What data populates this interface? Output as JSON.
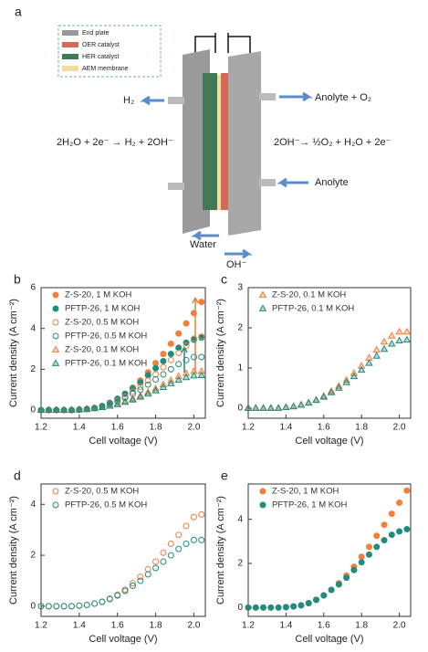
{
  "diagram": {
    "panel": "a",
    "legend": [
      "End plate",
      "OER catalyst",
      "HER catalyst",
      "AEM membrane"
    ],
    "left_outlet": "H₂",
    "right_outlet": "Anolyte + O₂",
    "left_reaction": "2H₂O + 2e⁻ → H₂ + 2OH⁻",
    "right_reaction": "2OH⁻→ ½O₂ + H₂O + 2e⁻",
    "right_inlet": "Anolyte",
    "water": "Water",
    "hydroxide": "OH⁻"
  },
  "chart_data": [
    {
      "type": "scatter",
      "panel": "b",
      "xlabel": "Cell voltage (V)",
      "ylabel": "Current density (A cm⁻²)",
      "xlim": [
        1.2,
        2.06
      ],
      "xticks": [
        1.2,
        1.4,
        1.6,
        1.8,
        {
          "value": 2,
          "label": "2.0"
        }
      ],
      "ylim": [
        -0.4,
        6
      ],
      "yticks": [
        0,
        2,
        4,
        6
      ],
      "x": [
        1.2,
        1.24,
        1.28,
        1.32,
        1.36,
        1.4,
        1.44,
        1.48,
        1.52,
        1.56,
        1.6,
        1.64,
        1.68,
        1.72,
        1.76,
        1.8,
        1.84,
        1.88,
        1.92,
        1.96,
        2.0,
        2.04
      ],
      "series": [
        {
          "name": "Z-S-20, 1 M KOH",
          "color": "#f07f3c",
          "marker": "circle",
          "filled": true,
          "values": [
            0,
            0,
            0,
            0,
            0,
            0.02,
            0.05,
            0.1,
            0.2,
            0.35,
            0.55,
            0.8,
            1.1,
            1.45,
            1.85,
            2.3,
            2.75,
            3.25,
            3.75,
            4.25,
            4.75,
            5.3
          ]
        },
        {
          "name": "PFTP-26, 1 M KOH",
          "color": "#1e8c7e",
          "marker": "circle",
          "filled": true,
          "values": [
            0,
            0,
            0,
            0,
            0,
            0.02,
            0.05,
            0.1,
            0.2,
            0.35,
            0.55,
            0.8,
            1.05,
            1.35,
            1.7,
            2.05,
            2.4,
            2.75,
            3.05,
            3.3,
            3.45,
            3.55
          ]
        },
        {
          "name": "Z-S-20, 0.5 M KOH",
          "color": "#f07f3c",
          "marker": "circle",
          "filled": false,
          "values": [
            0,
            0,
            0,
            0,
            0,
            0.02,
            0.05,
            0.1,
            0.18,
            0.3,
            0.45,
            0.65,
            0.9,
            1.15,
            1.45,
            1.75,
            2.1,
            2.45,
            2.8,
            3.15,
            3.5,
            3.6
          ]
        },
        {
          "name": "PFTP-26, 0.5 M KOH",
          "color": "#1e8c7e",
          "marker": "circle",
          "filled": false,
          "values": [
            0,
            0,
            0,
            0,
            0,
            0.02,
            0.05,
            0.1,
            0.17,
            0.28,
            0.42,
            0.6,
            0.8,
            1.0,
            1.25,
            1.5,
            1.75,
            2.0,
            2.25,
            2.45,
            2.6,
            2.6
          ]
        },
        {
          "name": "Z-S-20, 0.1 M KOH",
          "color": "#f07f3c",
          "marker": "triangle",
          "filled": false,
          "values": [
            0,
            0,
            0,
            0,
            0,
            0.02,
            0.04,
            0.08,
            0.13,
            0.2,
            0.3,
            0.42,
            0.55,
            0.7,
            0.87,
            1.05,
            1.25,
            1.45,
            1.65,
            1.8,
            1.9,
            1.9
          ]
        },
        {
          "name": "PFTP-26, 0.1 M KOH",
          "color": "#1e8c7e",
          "marker": "triangle",
          "filled": false,
          "values": [
            0,
            0,
            0,
            0,
            0,
            0.02,
            0.04,
            0.08,
            0.13,
            0.2,
            0.28,
            0.39,
            0.5,
            0.64,
            0.79,
            0.95,
            1.12,
            1.3,
            1.47,
            1.6,
            1.68,
            1.7
          ]
        }
      ]
    },
    {
      "type": "scatter",
      "panel": "c",
      "xlabel": "Cell voltage (V)",
      "ylabel": "Current density (A cm⁻²)",
      "xlim": [
        1.2,
        2.06
      ],
      "xticks": [
        1.2,
        1.4,
        1.6,
        1.8,
        {
          "value": 2,
          "label": "2.0"
        }
      ],
      "ylim": [
        -0.25,
        3
      ],
      "yticks": [
        0,
        1,
        2,
        3
      ],
      "x": [
        1.2,
        1.24,
        1.28,
        1.32,
        1.36,
        1.4,
        1.44,
        1.48,
        1.52,
        1.56,
        1.6,
        1.64,
        1.68,
        1.72,
        1.76,
        1.8,
        1.84,
        1.88,
        1.92,
        1.96,
        2.0,
        2.04
      ],
      "series": [
        {
          "name": "Z-S-20, 0.1 M KOH",
          "color": "#f07f3c",
          "marker": "triangle",
          "filled": false,
          "values": [
            0,
            0,
            0,
            0,
            0,
            0.02,
            0.04,
            0.08,
            0.13,
            0.2,
            0.3,
            0.42,
            0.55,
            0.7,
            0.87,
            1.05,
            1.25,
            1.45,
            1.65,
            1.8,
            1.9,
            1.9
          ]
        },
        {
          "name": "PFTP-26, 0.1 M KOH",
          "color": "#1e8c7e",
          "marker": "triangle",
          "filled": false,
          "values": [
            0,
            0,
            0,
            0,
            0,
            0.02,
            0.04,
            0.08,
            0.13,
            0.2,
            0.28,
            0.39,
            0.5,
            0.64,
            0.79,
            0.95,
            1.12,
            1.3,
            1.47,
            1.6,
            1.68,
            1.7
          ]
        }
      ]
    },
    {
      "type": "scatter",
      "panel": "d",
      "xlabel": "Cell voltage (V)",
      "ylabel": "Current density (A cm⁻²)",
      "xlim": [
        1.2,
        2.06
      ],
      "xticks": [
        1.2,
        1.4,
        1.6,
        1.8,
        {
          "value": 2,
          "label": "2.0"
        }
      ],
      "ylim": [
        -0.4,
        4.8
      ],
      "yticks": [
        0,
        2,
        4
      ],
      "x": [
        1.2,
        1.24,
        1.28,
        1.32,
        1.36,
        1.4,
        1.44,
        1.48,
        1.52,
        1.56,
        1.6,
        1.64,
        1.68,
        1.72,
        1.76,
        1.8,
        1.84,
        1.88,
        1.92,
        1.96,
        2.0,
        2.04
      ],
      "series": [
        {
          "name": "Z-S-20, 0.5 M KOH",
          "color": "#f07f3c",
          "marker": "circle",
          "filled": false,
          "values": [
            0,
            0,
            0,
            0,
            0,
            0.02,
            0.05,
            0.1,
            0.18,
            0.3,
            0.45,
            0.65,
            0.9,
            1.15,
            1.45,
            1.75,
            2.1,
            2.45,
            2.8,
            3.15,
            3.5,
            3.6
          ]
        },
        {
          "name": "PFTP-26, 0.5 M KOH",
          "color": "#1e8c7e",
          "marker": "circle",
          "filled": false,
          "values": [
            0,
            0,
            0,
            0,
            0,
            0.02,
            0.05,
            0.1,
            0.17,
            0.28,
            0.42,
            0.6,
            0.8,
            1.0,
            1.25,
            1.5,
            1.75,
            2.0,
            2.25,
            2.45,
            2.6,
            2.6
          ]
        }
      ]
    },
    {
      "type": "scatter",
      "panel": "e",
      "xlabel": "Cell voltage (V)",
      "ylabel": "Current density (A cm⁻²)",
      "xlim": [
        1.2,
        2.06
      ],
      "xticks": [
        1.2,
        1.4,
        1.6,
        1.8,
        {
          "value": 2,
          "label": "2.0"
        }
      ],
      "ylim": [
        -0.4,
        5.6
      ],
      "yticks": [
        0,
        2,
        4
      ],
      "x": [
        1.2,
        1.24,
        1.28,
        1.32,
        1.36,
        1.4,
        1.44,
        1.48,
        1.52,
        1.56,
        1.6,
        1.64,
        1.68,
        1.72,
        1.76,
        1.8,
        1.84,
        1.88,
        1.92,
        1.96,
        2.0,
        2.04
      ],
      "series": [
        {
          "name": "Z-S-20, 1 M KOH",
          "color": "#f07f3c",
          "marker": "circle",
          "filled": true,
          "values": [
            0,
            0,
            0,
            0,
            0,
            0.02,
            0.05,
            0.1,
            0.2,
            0.35,
            0.55,
            0.8,
            1.1,
            1.45,
            1.85,
            2.3,
            2.75,
            3.25,
            3.75,
            4.25,
            4.75,
            5.3
          ]
        },
        {
          "name": "PFTP-26, 1 M KOH",
          "color": "#1e8c7e",
          "marker": "circle",
          "filled": true,
          "values": [
            0,
            0,
            0,
            0,
            0,
            0.02,
            0.05,
            0.1,
            0.2,
            0.35,
            0.55,
            0.8,
            1.05,
            1.35,
            1.7,
            2.05,
            2.4,
            2.75,
            3.05,
            3.3,
            3.45,
            3.55
          ]
        }
      ]
    }
  ]
}
